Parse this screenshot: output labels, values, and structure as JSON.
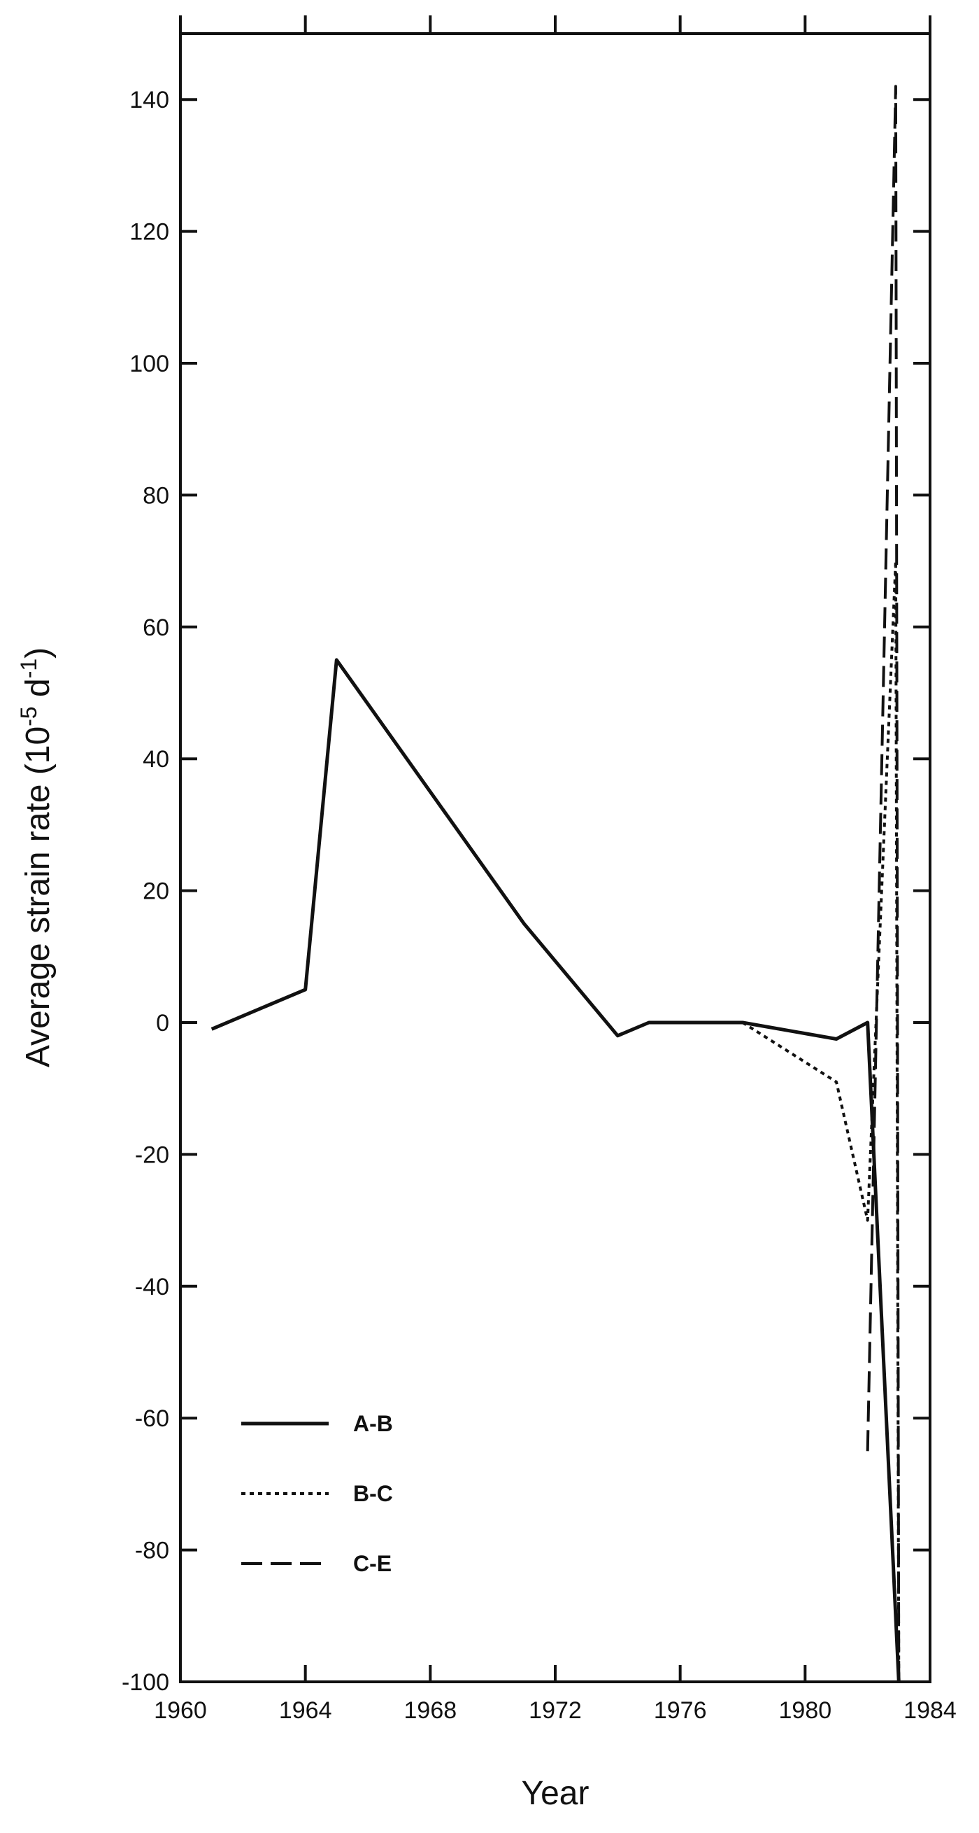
{
  "chart_data": {
    "type": "line",
    "xlabel": "Year",
    "ylabel": "Average strain rate (10",
    "ylabel_sup1": "-5",
    "ylabel_mid": " d",
    "ylabel_sup2": "-1",
    "ylabel_end": ")",
    "xlim": [
      1960,
      1984
    ],
    "ylim": [
      -100,
      150
    ],
    "xticks": [
      1960,
      1964,
      1968,
      1972,
      1976,
      1980,
      1984
    ],
    "yticks": [
      -100,
      -80,
      -60,
      -40,
      -20,
      0,
      20,
      40,
      60,
      80,
      100,
      120,
      140
    ],
    "grid": false,
    "legend_position": "bottom-left",
    "series": [
      {
        "name": "A-B",
        "style": "solid",
        "x": [
          1961,
          1964,
          1965,
          1968,
          1971,
          1974,
          1975,
          1978,
          1981,
          1982,
          1983
        ],
        "y": [
          -1,
          5,
          55,
          35,
          15,
          -2,
          0,
          0,
          -2.5,
          0,
          -100
        ]
      },
      {
        "name": "B-C",
        "style": "dotted",
        "x": [
          1978,
          1981,
          1982,
          1982.9,
          1983
        ],
        "y": [
          0,
          -9,
          -30,
          70,
          -100
        ]
      },
      {
        "name": "C-E",
        "style": "dashed",
        "x": [
          1982,
          1982.9,
          1983
        ],
        "y": [
          -65,
          142,
          -100
        ]
      }
    ]
  }
}
